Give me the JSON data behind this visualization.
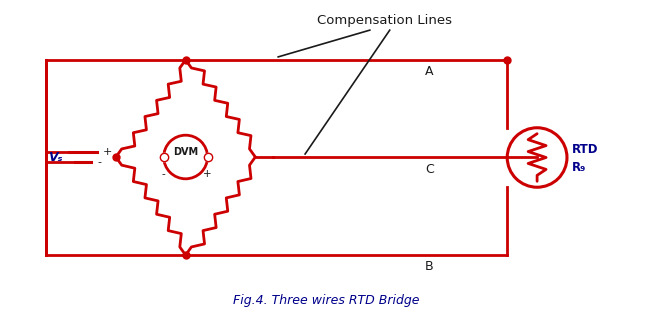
{
  "title": "Fig.4. Three wires RTD Bridge",
  "annotation": "Compensation Lines",
  "label_A": "A",
  "label_B": "B",
  "label_C": "C",
  "label_DVM": "DVM",
  "label_RTD": "RTD",
  "label_Rg": "R₉",
  "label_Vs": "Vₛ",
  "label_plus": "+",
  "label_minus": "-",
  "red_color": "#CC0000",
  "black_color": "#1a1a1a",
  "blue_color": "#00008B",
  "bg_color": "#FFFFFF",
  "lw": 2.0
}
